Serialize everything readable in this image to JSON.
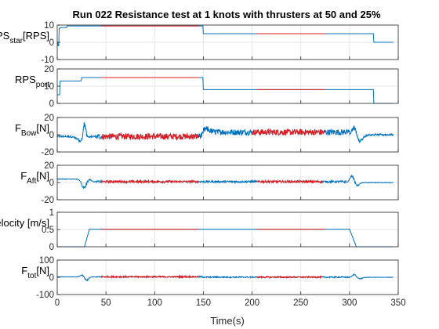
{
  "chart_data": {
    "type": "line",
    "title": "Run 022 Resistance test at 1 knots with thrusters at 50 and 25%",
    "xlabel": "Time(s)",
    "xlim": [
      0,
      350
    ],
    "x_ticks": [
      0,
      50,
      100,
      150,
      200,
      250,
      300,
      350
    ],
    "colors": {
      "full": "#0072BD",
      "window": "#E41A1C"
    },
    "panels": [
      {
        "ylabel": {
          "main": "RPS",
          "sub": "star",
          "suffix": "[RPS]"
        },
        "ylim": [
          -10,
          10
        ],
        "y_ticks": [
          -10,
          0,
          10
        ],
        "show_x_ticks": false,
        "segments": [
          {
            "t0": 0,
            "t1": 1,
            "v": 0
          },
          {
            "t0": 1,
            "t1": 2,
            "v": -2
          },
          {
            "t0": 2,
            "t1": 3,
            "v": 8
          },
          {
            "t0": 3,
            "t1": 10,
            "v": 8.5
          },
          {
            "t0": 10,
            "t1": 150,
            "v": 9.5
          },
          {
            "t0": 150,
            "t1": 325,
            "v": 5
          },
          {
            "t0": 325,
            "t1": 345,
            "v": 0
          }
        ],
        "window": {
          "t0": 45,
          "t1": 145
        },
        "window2": {
          "t0": 205,
          "t1": 275
        },
        "noise": 0
      },
      {
        "ylabel": {
          "main": "RPS",
          "sub": "port",
          "suffix": ""
        },
        "ylim": [
          0,
          20
        ],
        "y_ticks": [
          0,
          10,
          20
        ],
        "show_x_ticks": false,
        "segments": [
          {
            "t0": 0,
            "t1": 3,
            "v": 5
          },
          {
            "t0": 3,
            "t1": 25,
            "v": 13
          },
          {
            "t0": 25,
            "t1": 150,
            "v": 15
          },
          {
            "t0": 150,
            "t1": 325,
            "v": 8
          },
          {
            "t0": 325,
            "t1": 345,
            "v": 0
          }
        ],
        "window": {
          "t0": 45,
          "t1": 145
        },
        "window2": {
          "t0": 205,
          "t1": 275
        },
        "noise": 0
      },
      {
        "ylabel": {
          "main": "F",
          "sub": "Bow",
          "suffix": "[N]"
        },
        "ylim": [
          -20,
          20
        ],
        "y_ticks": [
          -20,
          0,
          20
        ],
        "show_x_ticks": false,
        "base_segments": [
          {
            "t0": 0,
            "t1": 150,
            "v": -2
          },
          {
            "t0": 150,
            "t1": 300,
            "v": 3
          },
          {
            "t0": 300,
            "t1": 345,
            "v": 0
          }
        ],
        "noise": 3.5,
        "events": [
          {
            "t": 25,
            "amp": -7,
            "width": 6
          },
          {
            "t": 28,
            "amp": 22,
            "width": 2
          },
          {
            "t": 153,
            "amp": 4,
            "width": 5
          },
          {
            "t": 305,
            "amp": 14,
            "width": 3
          },
          {
            "t": 310,
            "amp": -9,
            "width": 5
          }
        ],
        "window": {
          "t0": 45,
          "t1": 145
        },
        "window2": {
          "t0": 200,
          "t1": 275
        }
      },
      {
        "ylabel": {
          "main": "F",
          "sub": "Aft",
          "suffix": "[N]"
        },
        "ylim": [
          -20,
          20
        ],
        "y_ticks": [
          -20,
          0,
          20
        ],
        "show_x_ticks": false,
        "base_segments": [
          {
            "t0": 0,
            "t1": 25,
            "v": 4
          },
          {
            "t0": 25,
            "t1": 300,
            "v": 1
          },
          {
            "t0": 300,
            "t1": 345,
            "v": 0
          }
        ],
        "noise": 1.2,
        "events": [
          {
            "t": 28,
            "amp": -10,
            "width": 4
          },
          {
            "t": 32,
            "amp": 6,
            "width": 3
          },
          {
            "t": 303,
            "amp": 11,
            "width": 3
          },
          {
            "t": 307,
            "amp": -5,
            "width": 4
          }
        ],
        "window": {
          "t0": 45,
          "t1": 145
        },
        "window2": {
          "t0": 205,
          "t1": 272
        }
      },
      {
        "ylabel": {
          "main": "Vessel Velocity [m/s]",
          "sub": "",
          "suffix": ""
        },
        "ylim": [
          0,
          1
        ],
        "y_ticks": [
          0,
          0.5,
          1
        ],
        "show_x_ticks": false,
        "ramps": [
          [
            0,
            0
          ],
          [
            28,
            0
          ],
          [
            33,
            0.51
          ],
          [
            300,
            0.51
          ],
          [
            307,
            0
          ],
          [
            345,
            0
          ]
        ],
        "window": {
          "t0": 45,
          "t1": 145
        },
        "window2": {
          "t0": 205,
          "t1": 275
        },
        "noise": 0
      },
      {
        "ylabel": {
          "main": "F",
          "sub": "tot",
          "suffix": "[N]"
        },
        "ylim": [
          -100,
          100
        ],
        "y_ticks": [
          -100,
          0,
          100
        ],
        "show_x_ticks": true,
        "base_segments": [
          {
            "t0": 0,
            "t1": 150,
            "v": 3
          },
          {
            "t0": 150,
            "t1": 300,
            "v": 1
          },
          {
            "t0": 300,
            "t1": 345,
            "v": 0
          }
        ],
        "noise": 4,
        "events": [
          {
            "t": 26,
            "amp": 15,
            "width": 3
          },
          {
            "t": 30,
            "amp": -25,
            "width": 3
          },
          {
            "t": 305,
            "amp": 22,
            "width": 3
          },
          {
            "t": 310,
            "amp": -12,
            "width": 4
          }
        ],
        "window": {
          "t0": 45,
          "t1": 145
        },
        "window2": {
          "t0": 205,
          "t1": 272
        }
      }
    ]
  }
}
